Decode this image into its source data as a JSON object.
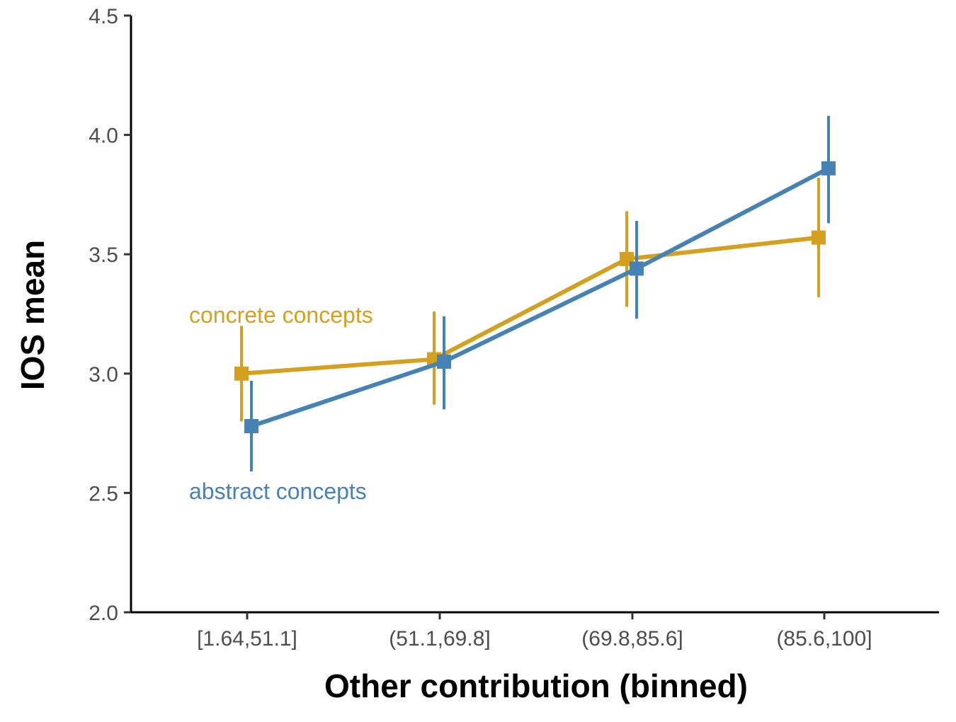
{
  "chart_data": {
    "type": "line",
    "xlabel": "Other contribution (binned)",
    "ylabel": "IOS mean",
    "categories": [
      "[1.64,51.1]",
      "(51.1,69.8]",
      "(69.8,85.6]",
      "(85.6,100]"
    ],
    "ylim": [
      2.0,
      4.5
    ],
    "yticks": [
      "2.0",
      "2.5",
      "3.0",
      "3.5",
      "4.0",
      "4.5"
    ],
    "grid": false,
    "series": [
      {
        "name": "concrete concepts",
        "color": "#d4a020",
        "values": [
          3.0,
          3.06,
          3.48,
          3.57
        ],
        "err_low": [
          2.8,
          2.87,
          3.28,
          3.32
        ],
        "err_high": [
          3.2,
          3.26,
          3.68,
          3.82
        ]
      },
      {
        "name": "abstract concepts",
        "color": "#4682b4",
        "values": [
          2.78,
          3.05,
          3.44,
          3.86
        ],
        "err_low": [
          2.59,
          2.85,
          3.23,
          3.63
        ],
        "err_high": [
          2.97,
          3.24,
          3.64,
          4.08
        ]
      }
    ]
  }
}
